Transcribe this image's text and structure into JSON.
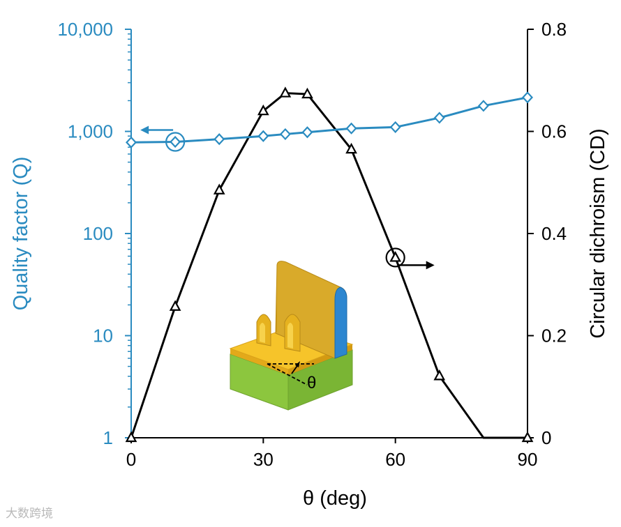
{
  "chart_data": {
    "type": "line",
    "xlabel": "θ (deg)",
    "ylabel_left": "Quality factor (Q)",
    "ylabel_right": "Circular dichroism (CD)",
    "xlim": [
      0,
      90
    ],
    "x_ticks": [
      0,
      30,
      60,
      90
    ],
    "x_tick_labels": [
      "0",
      "30",
      "60",
      "90"
    ],
    "y_left_scale": "log",
    "y_left_lim": [
      1,
      10000
    ],
    "y_left_ticks": [
      1,
      10,
      100,
      1000,
      10000
    ],
    "y_left_tick_labels": [
      "1",
      "10",
      "100",
      "1,000",
      "10,000"
    ],
    "y_right_lim": [
      0,
      0.8
    ],
    "y_right_ticks": [
      0,
      0.2,
      0.4,
      0.6,
      0.8
    ],
    "y_right_tick_labels": [
      "0",
      "0.2",
      "0.4",
      "0.6",
      "0.8"
    ],
    "grid": false,
    "series": [
      {
        "axis": "left",
        "marker": "diamond",
        "color": "#2a8bc0",
        "x": [
          0,
          10,
          20,
          30,
          35,
          40,
          50,
          60,
          70,
          80,
          90
        ],
        "y": [
          780,
          790,
          840,
          900,
          940,
          980,
          1070,
          1100,
          1360,
          1780,
          2150
        ]
      },
      {
        "axis": "right",
        "marker": "triangle",
        "color": "#000000",
        "x": [
          0,
          10,
          20,
          30,
          35,
          40,
          50,
          60,
          70,
          80,
          90
        ],
        "y": [
          0,
          0.257,
          0.485,
          0.64,
          0.675,
          0.673,
          0.565,
          0.353,
          0.121,
          0,
          0
        ]
      }
    ],
    "annotations": [
      {
        "type": "circle-arrow",
        "series": 0,
        "at_x": 10,
        "direction": "left"
      },
      {
        "type": "circle-arrow",
        "series": 1,
        "at_x": 60,
        "direction": "right"
      }
    ],
    "inset": {
      "description_label": "θ"
    }
  },
  "watermark": "大数跨境"
}
